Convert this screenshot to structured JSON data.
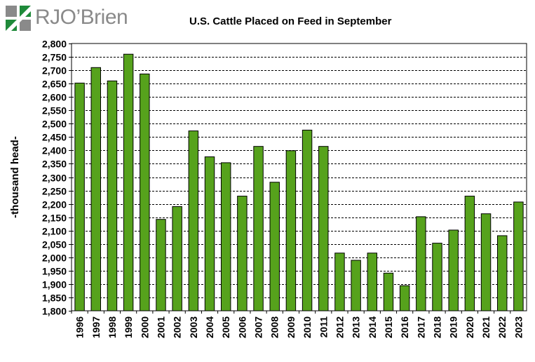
{
  "logo": {
    "text": "RJO’Brien",
    "icon": "rjobrien-logo-mark"
  },
  "colors": {
    "bar": "#56a21c",
    "bar_stroke": "#000000",
    "grid": "#000000",
    "logo_green": "#1f8a3a"
  },
  "chart_data": {
    "type": "bar",
    "title": "U.S. Cattle Placed on Feed in September",
    "xlabel": "",
    "ylabel": "-thousand head-",
    "ylim": [
      1800,
      2800
    ],
    "ytick_step": 50,
    "grid": true,
    "categories": [
      "1996",
      "1997",
      "1998",
      "1999",
      "2000",
      "2001",
      "2002",
      "2003",
      "2004",
      "2005",
      "2006",
      "2007",
      "2008",
      "2009",
      "2010",
      "2011",
      "2012",
      "2013",
      "2014",
      "2015",
      "2016",
      "2017",
      "2018",
      "2019",
      "2020",
      "2021",
      "2022",
      "2023"
    ],
    "values": [
      2652,
      2710,
      2660,
      2760,
      2686,
      2142,
      2190,
      2473,
      2376,
      2354,
      2229,
      2415,
      2281,
      2399,
      2476,
      2415,
      2016,
      1989,
      2016,
      1941,
      1894,
      2152,
      2053,
      2102,
      2229,
      2163,
      2081,
      2207
    ]
  }
}
